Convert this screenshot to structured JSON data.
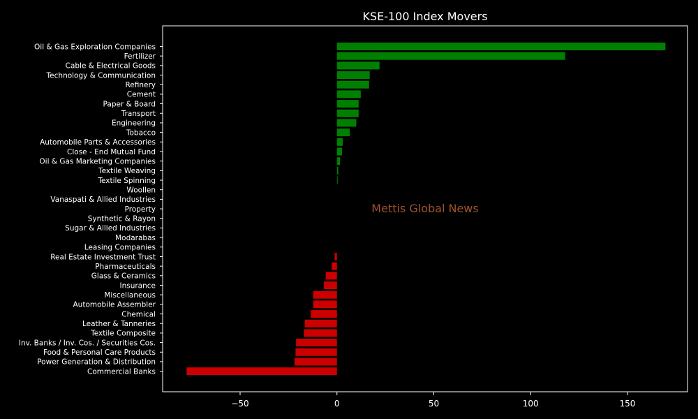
{
  "chart_data": {
    "type": "bar",
    "orientation": "horizontal",
    "title": "KSE-100 Index Movers",
    "xlabel": "",
    "ylabel": "",
    "xlim": [
      -90,
      181
    ],
    "xticks": [
      -50,
      0,
      50,
      100,
      150
    ],
    "xtick_labels": [
      "−50",
      "0",
      "50",
      "100",
      "150"
    ],
    "grid": false,
    "background": "#000000",
    "positive_color": "#008000",
    "negative_color": "#cc0000",
    "categories": [
      "Oil & Gas Exploration Companies",
      "Fertilizer",
      "Cable & Electrical Goods",
      "Technology & Communication",
      "Refinery",
      "Cement",
      "Paper & Board",
      "Transport",
      "Engineering",
      "Tobacco",
      "Automobile Parts & Accessories",
      "Close - End Mutual Fund",
      "Oil & Gas Marketing Companies",
      "Textile Weaving",
      "Textile Spinning",
      "Woollen",
      "Vanaspati & Allied Industries",
      "Property",
      "Synthetic & Rayon",
      "Sugar & Allied Industries",
      "Modarabas",
      "Leasing Companies",
      "Real Estate Investment Trust",
      "Pharmaceuticals",
      "Glass & Ceramics",
      "Insurance",
      "Miscellaneous",
      "Automobile Assembler",
      "Chemical",
      "Leather & Tanneries",
      "Textile Composite",
      "Inv. Banks / Inv. Cos. / Securities Cos.",
      "Food & Personal Care Products",
      "Power Generation & Distribution",
      "Commercial Banks"
    ],
    "values": [
      169.6,
      117.8,
      22.0,
      16.9,
      16.6,
      12.3,
      11.2,
      11.2,
      10.0,
      6.6,
      3.0,
      2.6,
      1.6,
      0.7,
      0.3,
      0,
      0,
      0,
      0,
      0,
      0,
      0,
      -1.2,
      -2.7,
      -5.8,
      -6.8,
      -12.3,
      -12.3,
      -13.5,
      -16.6,
      -17.1,
      -21.1,
      -21.4,
      -21.9,
      -77.6
    ]
  },
  "watermark": "Mettis Global News"
}
